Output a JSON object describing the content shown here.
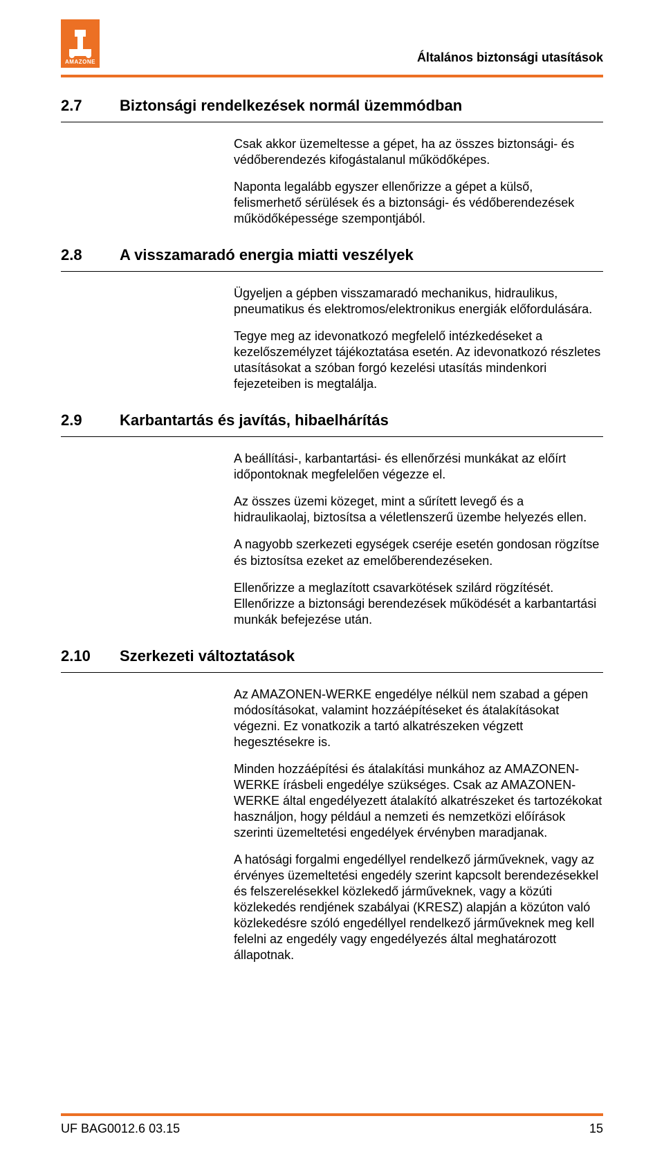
{
  "header": {
    "logo_label": "AMAZONE",
    "running_title": "Általános biztonsági utasítások"
  },
  "sections": [
    {
      "number": "2.7",
      "title": "Biztonsági rendelkezések normál üzemmódban",
      "paragraphs": [
        "Csak akkor üzemeltesse a gépet, ha az összes biztonsági- és védőberendezés kifogástalanul működőképes.",
        "Naponta legalább egyszer ellenőrizze a gépet a külső, felismerhető sérülések és a biztonsági- és védőberendezések működőképessége szempontjából."
      ]
    },
    {
      "number": "2.8",
      "title": "A visszamaradó energia miatti veszélyek",
      "paragraphs": [
        "Ügyeljen a gépben visszamaradó mechanikus, hidraulikus, pneumatikus és elektromos/elektronikus energiák előfordulására.",
        "Tegye meg az idevonatkozó megfelelő intézkedéseket a kezelőszemélyzet tájékoztatása esetén. Az idevonatkozó részletes utasításokat a szóban forgó kezelési utasítás mindenkori fejezeteiben is megtalálja."
      ]
    },
    {
      "number": "2.9",
      "title": "Karbantartás és javítás, hibaelhárítás",
      "paragraphs": [
        "A beállítási-, karbantartási- és ellenőrzési munkákat az előírt időpontoknak megfelelően végezze el.",
        "Az összes üzemi közeget, mint a sűrített levegő és a hidraulikaolaj, biztosítsa a véletlenszerű üzembe helyezés ellen.",
        "A nagyobb szerkezeti egységek cseréje esetén gondosan rögzítse és biztosítsa ezeket az emelőberendezéseken.",
        "Ellenőrizze a meglazított csavarkötések szilárd rögzítését. Ellenőrizze a biztonsági berendezések működését a karbantartási munkák befejezése után."
      ]
    },
    {
      "number": "2.10",
      "title": "Szerkezeti változtatások",
      "paragraphs": [
        "Az AMAZONEN-WERKE engedélye nélkül nem szabad a gépen módosításokat, valamint hozzáépítéseket és átalakításokat végezni. Ez vonatkozik a tartó alkatrészeken végzett hegesztésekre is.",
        "Minden hozzáépítési és átalakítási munkához az AMAZONEN-WERKE írásbeli engedélye szükséges. Csak az AMAZONEN-WERKE által engedélyezett átalakító alkatrészeket és tartozékokat használjon, hogy például a nemzeti és nemzetközi előírások szerinti üzemeltetési engedélyek érvényben maradjanak.",
        "A hatósági forgalmi engedéllyel rendelkező járműveknek, vagy az érvényes üzemeltetési engedély szerint kapcsolt berendezésekkel és felszerelésekkel közlekedő járműveknek, vagy a közúti közlekedés rendjének szabályai (KRESZ) alapján a közúton való közlekedésre szóló engedéllyel rendelkező járműveknek meg kell felelni az engedély vagy engedélyezés által meghatározott állapotnak."
      ]
    }
  ],
  "footer": {
    "doc_ref": "UF  BAG0012.6  03.15",
    "page_number": "15"
  },
  "colors": {
    "accent": "#ec7024",
    "text": "#000000",
    "background": "#ffffff"
  }
}
